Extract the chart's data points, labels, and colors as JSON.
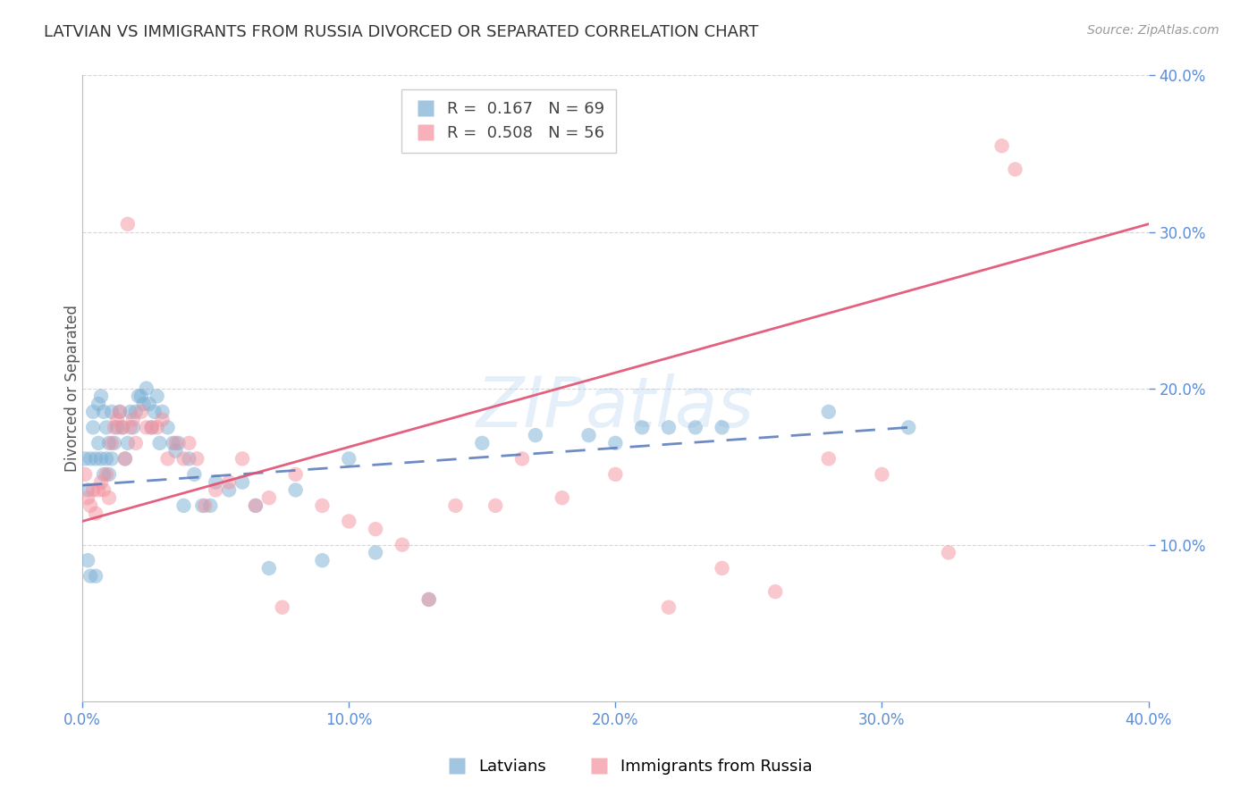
{
  "title": "LATVIAN VS IMMIGRANTS FROM RUSSIA DIVORCED OR SEPARATED CORRELATION CHART",
  "source": "Source: ZipAtlas.com",
  "ylabel": "Divorced or Separated",
  "xlim": [
    0.0,
    0.4
  ],
  "ylim": [
    0.0,
    0.4
  ],
  "legend_labels": [
    "Latvians",
    "Immigrants from Russia"
  ],
  "blue_color": "#7BAFD4",
  "pink_color": "#F4919E",
  "blue_line_color": "#5577BB",
  "pink_line_color": "#E05070",
  "watermark": "ZIPatlas",
  "R_latvian": 0.167,
  "N_latvian": 69,
  "R_russia": 0.508,
  "N_russia": 56,
  "latvian_x": [
    0.001,
    0.002,
    0.002,
    0.003,
    0.003,
    0.004,
    0.004,
    0.005,
    0.005,
    0.006,
    0.006,
    0.007,
    0.007,
    0.008,
    0.008,
    0.009,
    0.009,
    0.01,
    0.01,
    0.011,
    0.011,
    0.012,
    0.013,
    0.014,
    0.015,
    0.016,
    0.017,
    0.018,
    0.019,
    0.02,
    0.021,
    0.022,
    0.023,
    0.024,
    0.025,
    0.026,
    0.027,
    0.028,
    0.029,
    0.03,
    0.032,
    0.034,
    0.035,
    0.036,
    0.038,
    0.04,
    0.042,
    0.045,
    0.048,
    0.05,
    0.055,
    0.06,
    0.065,
    0.07,
    0.08,
    0.09,
    0.1,
    0.11,
    0.13,
    0.15,
    0.17,
    0.19,
    0.2,
    0.21,
    0.22,
    0.23,
    0.24,
    0.28,
    0.31
  ],
  "latvian_y": [
    0.155,
    0.09,
    0.135,
    0.08,
    0.155,
    0.175,
    0.185,
    0.08,
    0.155,
    0.165,
    0.19,
    0.155,
    0.195,
    0.145,
    0.185,
    0.175,
    0.155,
    0.165,
    0.145,
    0.155,
    0.185,
    0.165,
    0.175,
    0.185,
    0.175,
    0.155,
    0.165,
    0.185,
    0.175,
    0.185,
    0.195,
    0.195,
    0.19,
    0.2,
    0.19,
    0.175,
    0.185,
    0.195,
    0.165,
    0.185,
    0.175,
    0.165,
    0.16,
    0.165,
    0.125,
    0.155,
    0.145,
    0.125,
    0.125,
    0.14,
    0.135,
    0.14,
    0.125,
    0.085,
    0.135,
    0.09,
    0.155,
    0.095,
    0.065,
    0.165,
    0.17,
    0.17,
    0.165,
    0.175,
    0.175,
    0.175,
    0.175,
    0.185,
    0.175
  ],
  "russia_x": [
    0.001,
    0.002,
    0.003,
    0.004,
    0.005,
    0.006,
    0.007,
    0.008,
    0.009,
    0.01,
    0.011,
    0.012,
    0.013,
    0.014,
    0.015,
    0.016,
    0.017,
    0.018,
    0.019,
    0.02,
    0.022,
    0.024,
    0.026,
    0.028,
    0.03,
    0.032,
    0.035,
    0.038,
    0.04,
    0.043,
    0.046,
    0.05,
    0.055,
    0.06,
    0.065,
    0.07,
    0.075,
    0.08,
    0.09,
    0.1,
    0.11,
    0.12,
    0.13,
    0.14,
    0.155,
    0.165,
    0.18,
    0.2,
    0.22,
    0.24,
    0.26,
    0.28,
    0.3,
    0.325,
    0.345,
    0.35
  ],
  "russia_y": [
    0.145,
    0.13,
    0.125,
    0.135,
    0.12,
    0.135,
    0.14,
    0.135,
    0.145,
    0.13,
    0.165,
    0.175,
    0.18,
    0.185,
    0.175,
    0.155,
    0.305,
    0.175,
    0.18,
    0.165,
    0.185,
    0.175,
    0.175,
    0.175,
    0.18,
    0.155,
    0.165,
    0.155,
    0.165,
    0.155,
    0.125,
    0.135,
    0.14,
    0.155,
    0.125,
    0.13,
    0.06,
    0.145,
    0.125,
    0.115,
    0.11,
    0.1,
    0.065,
    0.125,
    0.125,
    0.155,
    0.13,
    0.145,
    0.06,
    0.085,
    0.07,
    0.155,
    0.145,
    0.095,
    0.355,
    0.34
  ],
  "blue_regline_x": [
    0.0,
    0.31
  ],
  "blue_regline_y": [
    0.138,
    0.175
  ],
  "pink_regline_x": [
    0.0,
    0.4
  ],
  "pink_regline_y": [
    0.115,
    0.305
  ]
}
